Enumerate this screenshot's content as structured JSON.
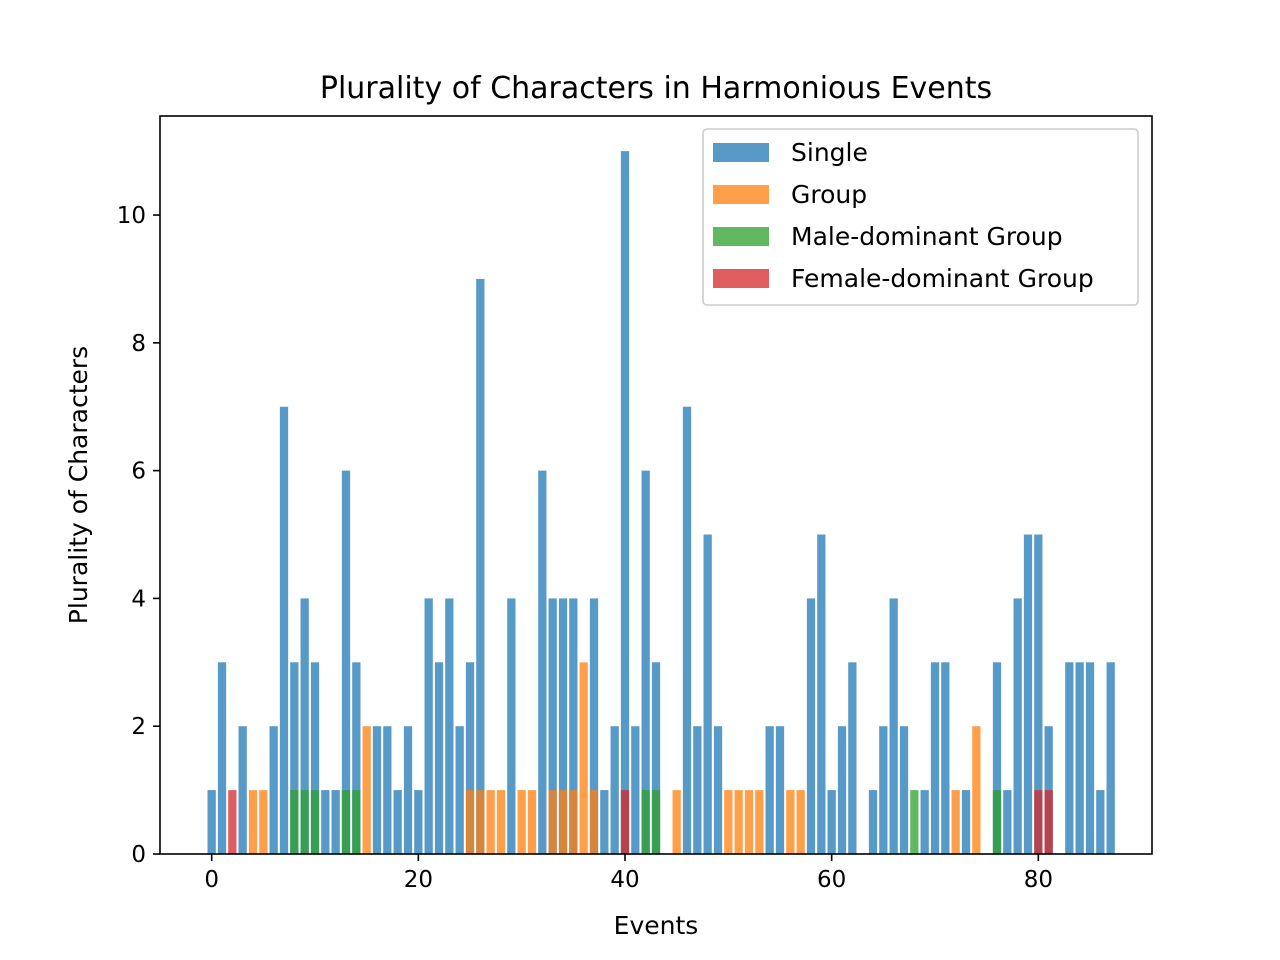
{
  "chart_data": {
    "type": "bar",
    "title": "Plurality of Characters in Harmonious Events",
    "xlabel": "Events",
    "ylabel": "Plurality of Characters",
    "xlim": [
      -5,
      91
    ],
    "ylim": [
      0,
      11.55
    ],
    "xticks": [
      0,
      20,
      40,
      60,
      80
    ],
    "yticks": [
      0,
      2,
      4,
      6,
      8,
      10
    ],
    "grid": false,
    "legend_position": "top-right",
    "bar_opacity": 0.75,
    "x": [
      0,
      1,
      2,
      3,
      4,
      5,
      6,
      7,
      8,
      9,
      10,
      11,
      12,
      13,
      14,
      15,
      16,
      17,
      18,
      19,
      20,
      21,
      22,
      23,
      24,
      25,
      26,
      27,
      28,
      29,
      30,
      31,
      32,
      33,
      34,
      35,
      36,
      37,
      38,
      39,
      40,
      41,
      42,
      43,
      44,
      45,
      46,
      47,
      48,
      49,
      50,
      51,
      52,
      53,
      54,
      55,
      56,
      57,
      58,
      59,
      60,
      61,
      62,
      63,
      64,
      65,
      66,
      67,
      68,
      69,
      70,
      71,
      72,
      73,
      74,
      75,
      76,
      77,
      78,
      79,
      80,
      81,
      82,
      83,
      84,
      85,
      86,
      87
    ],
    "series": [
      {
        "name": "Single",
        "color": "#1f77b4",
        "values": [
          1,
          3,
          0,
          2,
          0,
          0,
          2,
          7,
          3,
          4,
          3,
          1,
          1,
          6,
          3,
          0,
          2,
          2,
          1,
          2,
          1,
          4,
          3,
          4,
          2,
          3,
          9,
          0,
          0,
          4,
          0,
          0,
          6,
          4,
          4,
          4,
          0,
          4,
          1,
          2,
          11,
          2,
          6,
          3,
          0,
          0,
          7,
          2,
          5,
          2,
          0,
          0,
          0,
          0,
          2,
          2,
          0,
          0,
          4,
          5,
          1,
          2,
          3,
          0,
          1,
          2,
          4,
          2,
          0,
          1,
          3,
          3,
          0,
          1,
          0,
          0,
          3,
          1,
          4,
          5,
          5,
          2,
          0,
          3,
          3,
          3,
          1,
          3
        ]
      },
      {
        "name": "Group",
        "color": "#ff7f0e",
        "values": [
          0,
          0,
          0,
          0,
          1,
          1,
          0,
          0,
          0,
          0,
          0,
          0,
          0,
          0,
          0,
          2,
          0,
          0,
          0,
          0,
          0,
          0,
          0,
          0,
          0,
          1,
          1,
          1,
          1,
          0,
          1,
          1,
          0,
          1,
          1,
          1,
          3,
          1,
          0,
          0,
          0,
          0,
          0,
          0,
          0,
          1,
          0,
          0,
          0,
          0,
          1,
          1,
          1,
          1,
          0,
          0,
          1,
          1,
          0,
          0,
          0,
          0,
          0,
          0,
          0,
          0,
          0,
          0,
          0,
          0,
          0,
          0,
          1,
          0,
          2,
          0,
          0,
          0,
          0,
          0,
          0,
          0,
          0,
          0,
          0,
          0,
          0,
          0
        ]
      },
      {
        "name": "Male-dominant Group",
        "color": "#2ca02c",
        "values": [
          0,
          0,
          0,
          0,
          0,
          0,
          0,
          0,
          1,
          1,
          1,
          0,
          0,
          1,
          1,
          0,
          0,
          0,
          0,
          0,
          0,
          0,
          0,
          0,
          0,
          0,
          0,
          0,
          0,
          0,
          0,
          0,
          0,
          0,
          0,
          0,
          0,
          0,
          0,
          0,
          0,
          0,
          1,
          1,
          0,
          0,
          0,
          0,
          0,
          0,
          0,
          0,
          0,
          0,
          0,
          0,
          0,
          0,
          0,
          0,
          0,
          0,
          0,
          0,
          0,
          0,
          0,
          0,
          1,
          0,
          0,
          0,
          0,
          0,
          0,
          0,
          1,
          0,
          0,
          0,
          0,
          0,
          0,
          0,
          0,
          0,
          0,
          0
        ]
      },
      {
        "name": "Female-dominant Group",
        "color": "#d62728",
        "values": [
          0,
          0,
          1,
          0,
          0,
          0,
          0,
          0,
          0,
          0,
          0,
          0,
          0,
          0,
          0,
          0,
          0,
          0,
          0,
          0,
          0,
          0,
          0,
          0,
          0,
          0,
          0,
          0,
          0,
          0,
          0,
          0,
          0,
          0,
          0,
          0,
          0,
          0,
          0,
          0,
          1,
          0,
          0,
          0,
          0,
          0,
          0,
          0,
          0,
          0,
          0,
          0,
          0,
          0,
          0,
          0,
          0,
          0,
          0,
          0,
          0,
          0,
          0,
          0,
          0,
          0,
          0,
          0,
          0,
          0,
          0,
          0,
          0,
          0,
          0,
          0,
          0,
          0,
          0,
          0,
          1,
          1,
          0,
          0,
          0,
          0,
          0,
          0
        ]
      }
    ]
  }
}
